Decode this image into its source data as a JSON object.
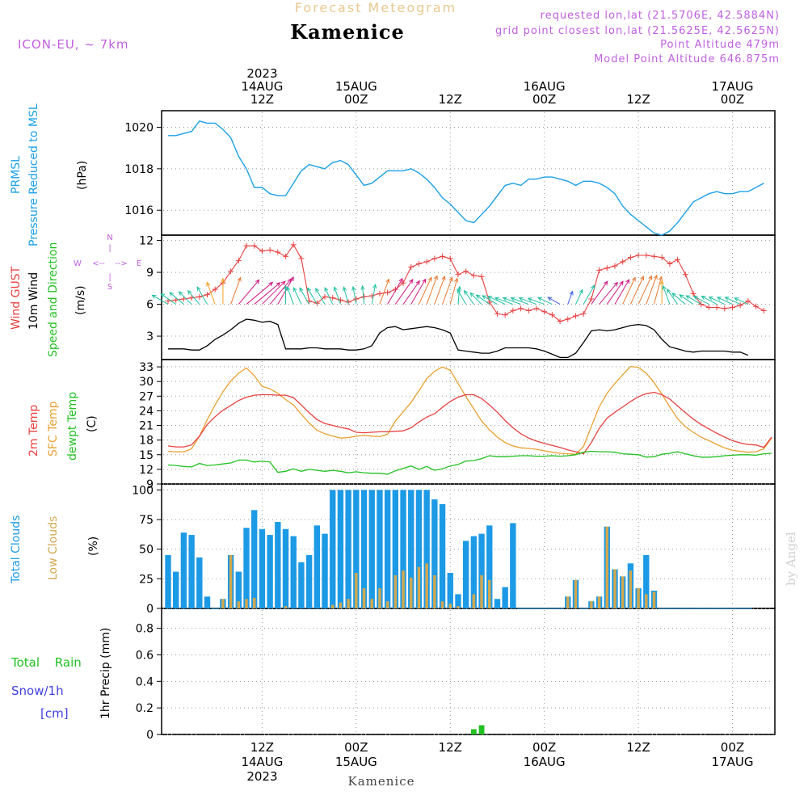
{
  "header": {
    "product": "Forecast Meteogram",
    "location": "Kamenice",
    "model": "ICON-EU, ~ 7km",
    "requested": "requested lon,lat (21.5706E, 42.5884N)",
    "gridpoint": "grid point closest lon,lat (21.5625E, 42.5625N)",
    "point_altitude": "Point Altitude 479m",
    "model_altitude": "Model Point Altitude 646.875m",
    "footer_location": "Kamenice",
    "watermark": "by Angel"
  },
  "time_axis": {
    "top_labels": [
      {
        "h": 12,
        "lines": [
          "2023",
          "14AUG",
          "12Z"
        ]
      },
      {
        "h": 24,
        "lines": [
          "15AUG",
          "00Z"
        ]
      },
      {
        "h": 36,
        "lines": [
          "12Z"
        ]
      },
      {
        "h": 48,
        "lines": [
          "16AUG",
          "00Z"
        ]
      },
      {
        "h": 60,
        "lines": [
          "12Z"
        ]
      },
      {
        "h": 72,
        "lines": [
          "17AUG",
          "00Z"
        ]
      }
    ],
    "bottom_labels": [
      {
        "h": 12,
        "lines": [
          "12Z",
          "14AUG",
          "2023"
        ]
      },
      {
        "h": 24,
        "lines": [
          "00Z",
          "15AUG"
        ]
      },
      {
        "h": 36,
        "lines": [
          "12Z"
        ]
      },
      {
        "h": 48,
        "lines": [
          "00Z",
          "16AUG"
        ]
      },
      {
        "h": 60,
        "lines": [
          "12Z"
        ]
      },
      {
        "h": 72,
        "lines": [
          "00Z",
          "17AUG"
        ]
      }
    ]
  },
  "panels": {
    "pressure": {
      "label1": "PRMSL",
      "label2": "Pressure Reduced to MSL",
      "unit": "(hPa)",
      "ticks": [
        "1016",
        "1018",
        "1020"
      ]
    },
    "wind": {
      "label_gust": "Wind GUST",
      "label_wind": "10m Wind",
      "label_speed": "Speed and Direction",
      "unit": "(m/s)",
      "ticks": [
        "3",
        "6",
        "9",
        "12"
      ],
      "compass": {
        "n": "N",
        "s": "S",
        "w": "W",
        "e": "E",
        "nsym": "|",
        "ssym": "|",
        "wsym": "<--",
        "esym": "-->"
      }
    },
    "temp": {
      "label_2m": "2m Temp",
      "label_sfc": "SFC Temp",
      "label_dew": "dewpt Temp",
      "unit": "(C)",
      "ticks": [
        "9",
        "12",
        "15",
        "18",
        "21",
        "24",
        "27",
        "30",
        "33"
      ]
    },
    "clouds": {
      "label_total": "Total Clouds",
      "label_low": "Low Clouds",
      "unit": "(%)",
      "ticks": [
        "0",
        "25",
        "50",
        "75",
        "100"
      ]
    },
    "precip": {
      "label_rain": "Total Rain",
      "label_snow": "Snow/1h",
      "label_cm": "[cm]",
      "unit": "1hr Precip (mm)",
      "ticks": [
        "0",
        "0.2",
        "0.4",
        "0.6",
        "0.8"
      ]
    }
  },
  "colors": {
    "pressure": "#1ba0e6",
    "gust": "#e84040",
    "wind": "#000000",
    "t2m": "#e84040",
    "tsfc": "#e8a030",
    "dew": "#22c022",
    "total_cloud": "#1c9ae6",
    "low_cloud": "#d0a850",
    "rain": "#22c022",
    "snow": "#4040e0",
    "title": "#e8c890",
    "meta": "#c060e0"
  },
  "chart_data": [
    {
      "type": "line",
      "title": "PRMSL Pressure Reduced to MSL",
      "ylabel": "hPa",
      "x_start_hour": 0,
      "ylim": [
        1014.8,
        1020.8
      ],
      "points": [
        [
          0,
          1019.6
        ],
        [
          1,
          1019.6
        ],
        [
          2,
          1019.7
        ],
        [
          3,
          1019.8
        ],
        [
          4,
          1020.3
        ],
        [
          5,
          1020.2
        ],
        [
          6,
          1020.2
        ],
        [
          7,
          1019.9
        ],
        [
          8,
          1019.5
        ],
        [
          9,
          1018.6
        ],
        [
          10,
          1018.0
        ],
        [
          11,
          1017.1
        ],
        [
          12,
          1017.1
        ],
        [
          13,
          1016.8
        ],
        [
          14,
          1016.7
        ],
        [
          15,
          1016.7
        ],
        [
          16,
          1017.3
        ],
        [
          17,
          1017.9
        ],
        [
          18,
          1018.2
        ],
        [
          19,
          1018.1
        ],
        [
          20,
          1018.0
        ],
        [
          21,
          1018.3
        ],
        [
          22,
          1018.4
        ],
        [
          23,
          1018.2
        ],
        [
          24,
          1017.7
        ],
        [
          25,
          1017.2
        ],
        [
          26,
          1017.3
        ],
        [
          27,
          1017.6
        ],
        [
          28,
          1017.9
        ],
        [
          29,
          1017.9
        ],
        [
          30,
          1017.9
        ],
        [
          31,
          1018.0
        ],
        [
          32,
          1017.8
        ],
        [
          33,
          1017.5
        ],
        [
          34,
          1017.1
        ],
        [
          35,
          1016.6
        ],
        [
          36,
          1016.3
        ],
        [
          37,
          1015.9
        ],
        [
          38,
          1015.5
        ],
        [
          39,
          1015.4
        ],
        [
          40,
          1015.8
        ],
        [
          41,
          1016.2
        ],
        [
          42,
          1016.7
        ],
        [
          43,
          1017.2
        ],
        [
          44,
          1017.3
        ],
        [
          45,
          1017.2
        ],
        [
          46,
          1017.5
        ],
        [
          47,
          1017.5
        ],
        [
          48,
          1017.6
        ],
        [
          49,
          1017.6
        ],
        [
          50,
          1017.5
        ],
        [
          51,
          1017.4
        ],
        [
          52,
          1017.2
        ],
        [
          53,
          1017.4
        ],
        [
          54,
          1017.4
        ],
        [
          55,
          1017.3
        ],
        [
          56,
          1017.1
        ],
        [
          57,
          1016.8
        ],
        [
          58,
          1016.2
        ],
        [
          59,
          1015.8
        ],
        [
          60,
          1015.5
        ],
        [
          61,
          1015.2
        ],
        [
          62,
          1014.9
        ],
        [
          63,
          1014.8
        ],
        [
          64,
          1015.0
        ],
        [
          65,
          1015.4
        ],
        [
          66,
          1015.9
        ],
        [
          67,
          1016.4
        ],
        [
          68,
          1016.6
        ],
        [
          69,
          1016.8
        ],
        [
          70,
          1016.9
        ],
        [
          71,
          1016.8
        ],
        [
          72,
          1016.8
        ],
        [
          73,
          1016.9
        ],
        [
          74,
          1016.9
        ],
        [
          75,
          1017.1
        ],
        [
          76,
          1017.3
        ]
      ]
    },
    {
      "type": "line",
      "title": "Wind GUST / 10m Wind Speed and Direction",
      "ylabel": "m/s",
      "ylim": [
        0.8,
        12.5
      ],
      "gust": [
        6.3,
        6.4,
        6.5,
        6.6,
        6.7,
        6.9,
        7.4,
        8.0,
        9.1,
        10.1,
        11.5,
        11.5,
        11.0,
        11.1,
        10.9,
        10.5,
        11.6,
        10.3,
        6.3,
        6.1,
        6.7,
        6.6,
        6.4,
        6.2,
        6.5,
        6.7,
        6.8,
        7.0,
        7.1,
        7.4,
        8.0,
        9.5,
        9.8,
        10.0,
        10.3,
        10.5,
        10.3,
        8.8,
        9.1,
        8.7,
        8.6,
        6.2,
        5.1,
        5.0,
        5.4,
        5.6,
        5.4,
        5.6,
        5.3,
        5.0,
        4.4,
        4.6,
        4.9,
        5.1,
        6.5,
        9.2,
        9.4,
        9.6,
        10.0,
        10.4,
        10.6,
        10.6,
        10.5,
        10.4,
        9.8,
        10.2,
        8.8,
        7.0,
        6.0,
        5.7,
        5.7,
        5.6,
        5.7,
        5.9,
        6.3,
        5.8,
        5.4
      ],
      "speed": [
        1.8,
        1.8,
        1.8,
        1.7,
        1.7,
        2.1,
        2.7,
        3.1,
        3.6,
        4.2,
        4.6,
        4.5,
        4.3,
        4.4,
        4.1,
        1.8,
        1.8,
        1.8,
        1.9,
        1.9,
        1.8,
        1.8,
        1.8,
        1.7,
        1.7,
        1.8,
        2.1,
        3.3,
        3.8,
        3.9,
        3.6,
        3.7,
        3.8,
        3.9,
        3.8,
        3.6,
        3.3,
        1.7,
        1.6,
        1.5,
        1.4,
        1.4,
        1.6,
        1.9,
        1.9,
        1.9,
        1.9,
        1.8,
        1.6,
        1.3,
        1.0,
        1.0,
        1.4,
        2.4,
        3.5,
        3.6,
        3.5,
        3.6,
        3.8,
        4.0,
        4.1,
        4.0,
        3.6,
        2.7,
        2.0,
        1.8,
        1.6,
        1.5,
        1.6,
        1.6,
        1.6,
        1.6,
        1.5,
        1.5,
        1.2
      ],
      "direction_deg": [
        120,
        125,
        130,
        135,
        140,
        150,
        160,
        180,
        200,
        220,
        230,
        230,
        225,
        220,
        210,
        180,
        160,
        155,
        150,
        150,
        150,
        155,
        160,
        165,
        170,
        175,
        190,
        200,
        210,
        215,
        215,
        210,
        205,
        200,
        200,
        200,
        195,
        185,
        150,
        145,
        135,
        125,
        120,
        115,
        110,
        110,
        110,
        110,
        110,
        115,
        120,
        200,
        205,
        210,
        215,
        220,
        215,
        210,
        205,
        205,
        205,
        200,
        195,
        180,
        160,
        145,
        130,
        125,
        120,
        118,
        118,
        115,
        115,
        115,
        115
      ]
    },
    {
      "type": "line",
      "title": "2m Temp / SFC Temp / dewpt Temp",
      "ylabel": "C",
      "ylim": [
        9,
        34.5
      ],
      "t2m": [
        16.8,
        16.6,
        16.6,
        17.0,
        18.8,
        21.2,
        22.8,
        24.1,
        25.1,
        26.1,
        26.8,
        27.2,
        27.3,
        27.3,
        27.2,
        27.2,
        26.7,
        25.2,
        23.6,
        22.2,
        21.4,
        21.0,
        20.6,
        20.3,
        19.6,
        19.5,
        19.6,
        19.7,
        19.7,
        19.8,
        19.9,
        20.5,
        21.7,
        22.7,
        23.4,
        24.7,
        25.9,
        26.8,
        27.3,
        27.3,
        26.5,
        25.2,
        23.7,
        22.0,
        20.5,
        19.3,
        18.4,
        17.8,
        17.3,
        16.9,
        16.5,
        16.0,
        15.6,
        15.2,
        17.5,
        20.4,
        22.5,
        23.7,
        24.8,
        25.9,
        26.9,
        27.5,
        27.8,
        27.3,
        26.4,
        25.0,
        23.6,
        22.3,
        21.2,
        20.3,
        19.4,
        18.6,
        17.9,
        17.4,
        17.1,
        17.0,
        16.5,
        18.6
      ],
      "tsfc": [
        15.7,
        15.6,
        15.6,
        16.2,
        18.8,
        22.2,
        25.2,
        27.9,
        30.1,
        31.7,
        32.8,
        31.2,
        29.0,
        28.5,
        27.6,
        26.3,
        25.2,
        23.3,
        21.5,
        20.0,
        19.3,
        18.8,
        18.4,
        18.5,
        18.8,
        19.0,
        18.8,
        18.7,
        19.2,
        21.9,
        23.8,
        25.7,
        28.1,
        30.6,
        32.1,
        33.0,
        32.3,
        29.6,
        26.9,
        24.4,
        21.9,
        20.1,
        18.6,
        17.5,
        16.8,
        16.4,
        16.3,
        16.1,
        15.8,
        15.5,
        15.3,
        15.2,
        15.1,
        16.7,
        20.8,
        24.8,
        27.6,
        29.6,
        31.4,
        33.1,
        32.9,
        31.7,
        29.8,
        27.4,
        24.8,
        22.4,
        20.7,
        19.6,
        18.6,
        17.9,
        17.1,
        16.4,
        15.9,
        15.7,
        15.5,
        15.6,
        16.2,
        18.4
      ],
      "dewpt": [
        12.9,
        12.8,
        12.6,
        12.5,
        13.2,
        12.8,
        12.9,
        13.1,
        13.3,
        13.9,
        13.9,
        13.5,
        13.7,
        13.5,
        11.4,
        11.6,
        12.1,
        11.6,
        12.0,
        11.8,
        11.6,
        11.8,
        11.6,
        11.3,
        11.5,
        11.3,
        11.2,
        11.2,
        11.0,
        11.7,
        12.2,
        12.7,
        12.0,
        12.6,
        11.8,
        12.1,
        12.7,
        13.0,
        13.7,
        13.8,
        14.2,
        14.8,
        14.6,
        14.6,
        14.7,
        14.8,
        14.8,
        14.7,
        14.7,
        14.8,
        14.7,
        14.8,
        15.0,
        15.5,
        15.7,
        15.6,
        15.6,
        15.5,
        15.2,
        15.1,
        15.0,
        14.5,
        14.6,
        15.1,
        15.3,
        15.6,
        15.2,
        14.8,
        14.5,
        14.5,
        14.6,
        14.8,
        14.9,
        15.0,
        15.0,
        14.9,
        15.2,
        15.3
      ]
    },
    {
      "type": "bar",
      "title": "Total Clouds / Low Clouds",
      "ylabel": "%",
      "ylim": [
        0,
        105
      ],
      "total": [
        45,
        31,
        64,
        62,
        43,
        10,
        0,
        8,
        45,
        31,
        68,
        83,
        67,
        62,
        73,
        67,
        61,
        39,
        45,
        70,
        63,
        100,
        100,
        100,
        100,
        100,
        100,
        100,
        100,
        100,
        100,
        100,
        100,
        100,
        92,
        88,
        30,
        12,
        57,
        61,
        63,
        70,
        8,
        18,
        72,
        0,
        0,
        0,
        0,
        0,
        0,
        10,
        24,
        0,
        6,
        10,
        69,
        33,
        27,
        38,
        17,
        45,
        15,
        0,
        0,
        0,
        0,
        0,
        0,
        0,
        0,
        0,
        0,
        0,
        0
      ],
      "low": [
        0,
        0,
        0,
        0,
        0,
        0,
        0,
        8,
        45,
        6,
        8,
        9,
        0,
        0,
        0,
        2,
        0,
        0,
        0,
        0,
        0,
        3,
        5,
        8,
        30,
        17,
        8,
        17,
        6,
        28,
        32,
        26,
        35,
        38,
        28,
        6,
        4,
        2,
        0,
        12,
        28,
        24,
        0,
        0,
        0,
        0,
        0,
        0,
        0,
        0,
        0,
        10,
        24,
        0,
        6,
        10,
        69,
        33,
        27,
        32,
        17,
        12,
        14,
        0,
        0,
        0,
        0,
        0,
        0,
        0,
        0,
        0,
        0,
        0,
        0
      ]
    },
    {
      "type": "bar",
      "title": "1hr Precip (mm)",
      "ylabel": "mm",
      "ylim": [
        0,
        0.95
      ],
      "rain": [
        0,
        0,
        0,
        0,
        0,
        0,
        0,
        0,
        0,
        0,
        0,
        0,
        0,
        0,
        0,
        0,
        0,
        0,
        0,
        0,
        0,
        0,
        0,
        0,
        0,
        0,
        0,
        0,
        0,
        0,
        0,
        0,
        0,
        0,
        0,
        0,
        0,
        0,
        0,
        0.04,
        0.07,
        0,
        0,
        0,
        0,
        0,
        0,
        0,
        0,
        0,
        0,
        0,
        0,
        0,
        0,
        0,
        0,
        0,
        0,
        0,
        0,
        0,
        0,
        0,
        0,
        0,
        0,
        0,
        0,
        0,
        0,
        0,
        0,
        0,
        0,
        0
      ]
    }
  ]
}
